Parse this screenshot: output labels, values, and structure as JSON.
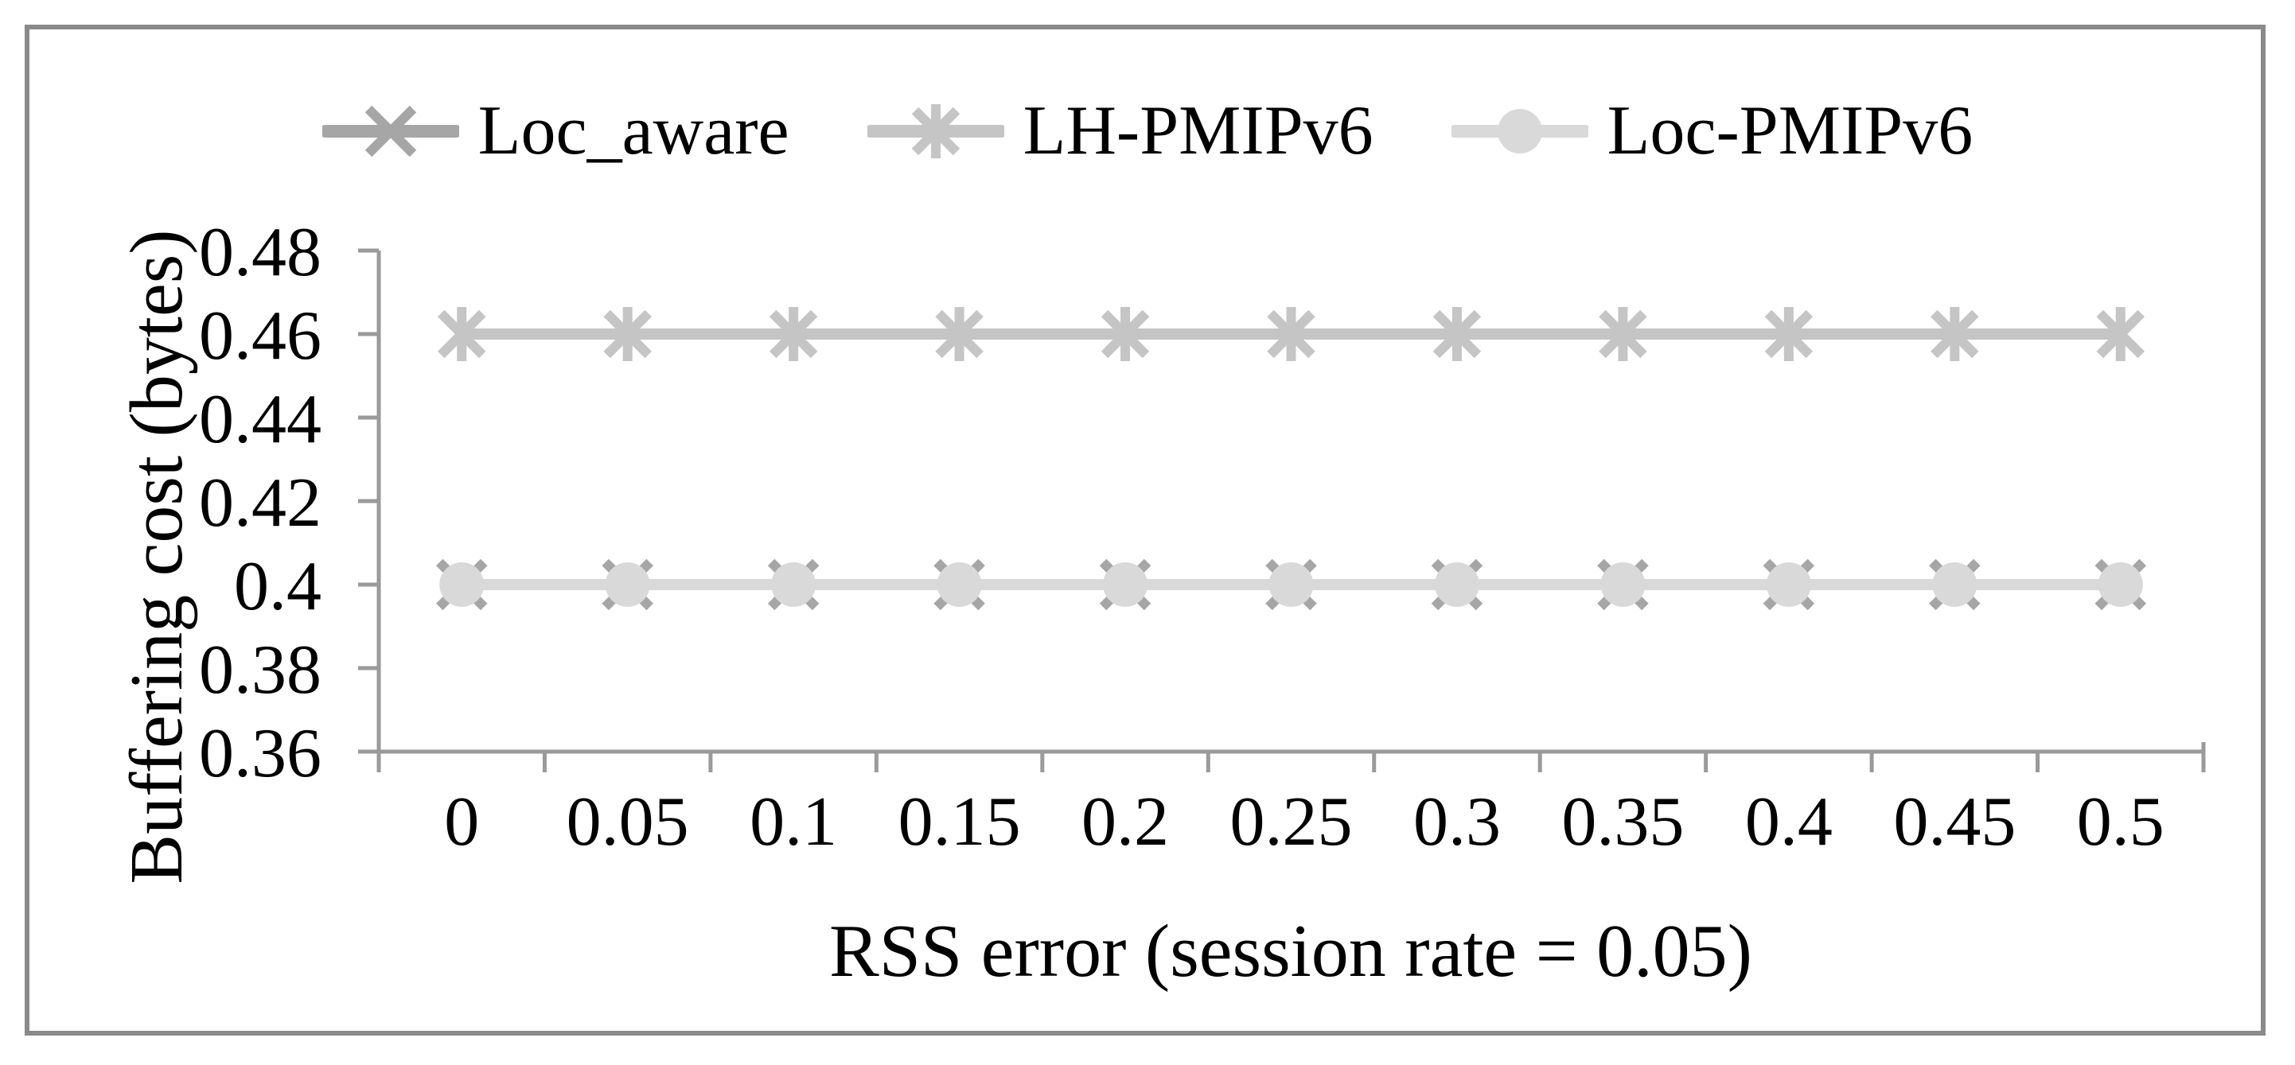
{
  "figure": {
    "frame_color": "#8a8a8a",
    "background_color": "#ffffff"
  },
  "chart_data": {
    "type": "line",
    "title": "",
    "xlabel": "RSS error (session rate = 0.05)",
    "ylabel": "Buffering cost (bytes)",
    "categories": [
      "0",
      "0.05",
      "0.1",
      "0.15",
      "0.2",
      "0.25",
      "0.3",
      "0.35",
      "0.4",
      "0.45",
      "0.5"
    ],
    "x": [
      0,
      0.05,
      0.1,
      0.15,
      0.2,
      0.25,
      0.3,
      0.35,
      0.4,
      0.45,
      0.5
    ],
    "y_tick_labels": [
      "0.36",
      "0.38",
      "0.4",
      "0.42",
      "0.44",
      "0.46",
      "0.48"
    ],
    "y_ticks": [
      0.36,
      0.38,
      0.4,
      0.42,
      0.44,
      0.46,
      0.48
    ],
    "ylim": [
      0.36,
      0.48
    ],
    "grid": false,
    "legend_position": "top-center",
    "axis_color": "#9a9a9a",
    "text_color": "#000000",
    "series": [
      {
        "name": "Loc_aware",
        "marker": "x",
        "color": "#a6a6a6",
        "values": [
          0.4,
          0.4,
          0.4,
          0.4,
          0.4,
          0.4,
          0.4,
          0.4,
          0.4,
          0.4,
          0.4
        ]
      },
      {
        "name": "LH-PMIPv6",
        "marker": "asterisk",
        "color": "#c5c5c5",
        "values": [
          0.46,
          0.46,
          0.46,
          0.46,
          0.46,
          0.46,
          0.46,
          0.46,
          0.46,
          0.46,
          0.46
        ]
      },
      {
        "name": "Loc-PMIPv6",
        "marker": "circle",
        "color": "#d9d9d9",
        "values": [
          0.4,
          0.4,
          0.4,
          0.4,
          0.4,
          0.4,
          0.4,
          0.4,
          0.4,
          0.4,
          0.4
        ]
      }
    ]
  }
}
